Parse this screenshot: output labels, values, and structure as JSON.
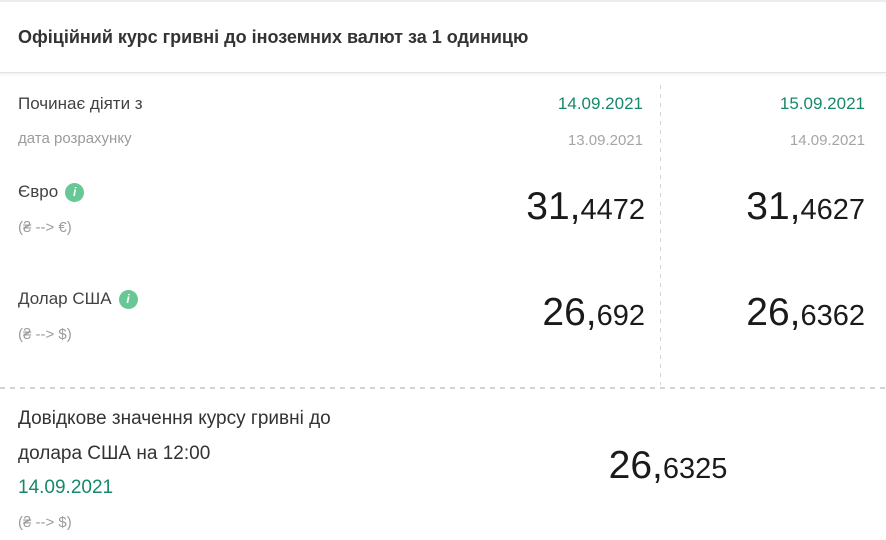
{
  "header": {
    "title": "Офіційний курс гривні до іноземних валют за 1 одиницю"
  },
  "colors": {
    "accent_green": "#67c795",
    "date_green": "#17886b",
    "muted_gray": "#9b9b9b",
    "value_black": "#1a1a1a"
  },
  "rates": {
    "effective_label": "Починає діяти з",
    "calc_label": "дата розрахунку",
    "columns": [
      {
        "effective_date": "14.09.2021",
        "calc_date": "13.09.2021"
      },
      {
        "effective_date": "15.09.2021",
        "calc_date": "14.09.2021"
      }
    ],
    "rows": [
      {
        "currency": "Євро",
        "pair": "(₴ --> €)",
        "info_icon": "i",
        "values": [
          {
            "main": "31,",
            "frac": "4472"
          },
          {
            "main": "31,",
            "frac": "4627"
          }
        ]
      },
      {
        "currency": "Долар США",
        "pair": "(₴ --> $)",
        "info_icon": "i",
        "values": [
          {
            "main": "26,",
            "frac": "692"
          },
          {
            "main": "26,",
            "frac": "6362"
          }
        ]
      }
    ]
  },
  "reference": {
    "title_line1": "Довідкове значення курсу гривні до",
    "title_line2": "долара США на 12:00",
    "date": "14.09.2021",
    "pair": "(₴ --> $)",
    "value": {
      "main": "26,",
      "frac": "6325"
    }
  }
}
